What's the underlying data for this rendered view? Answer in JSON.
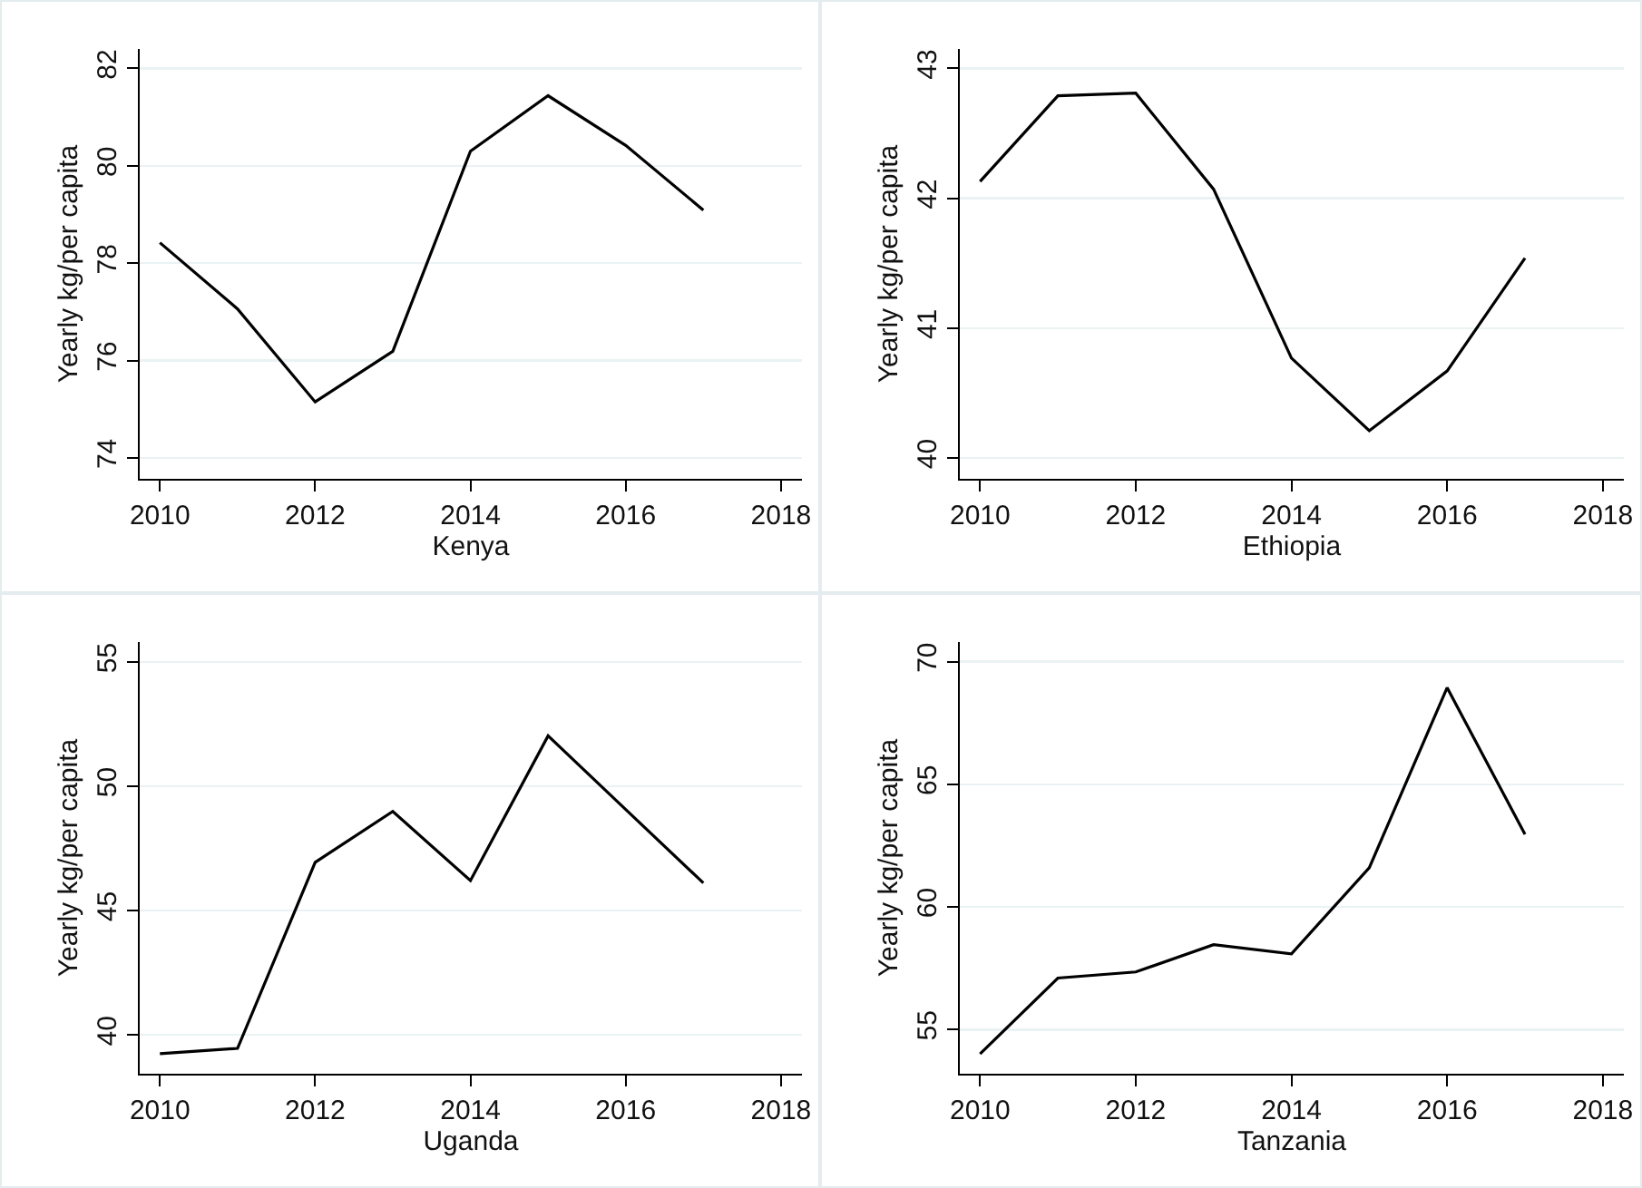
{
  "chart_data": [
    {
      "type": "line",
      "xlabel": "Kenya",
      "ylabel": "Yearly kg/per capita",
      "x": [
        2010,
        2011,
        2012,
        2013,
        2014,
        2015,
        2016,
        2017
      ],
      "series": [
        {
          "color": "#000000",
          "values": [
            78.42,
            77.06,
            75.15,
            76.19,
            80.3,
            81.44,
            80.42,
            79.09
          ]
        }
      ],
      "xlim": [
        2009.74,
        2018.27
      ],
      "ylim": [
        73.57,
        82.4
      ],
      "xticks": [
        2010,
        2012,
        2014,
        2016,
        2018
      ],
      "yticks": [
        74,
        76,
        78,
        80,
        82
      ],
      "grid": "y",
      "legend": false
    },
    {
      "type": "line",
      "xlabel": "Ethiopia",
      "ylabel": "Yearly kg/per capita",
      "x": [
        2010,
        2011,
        2012,
        2013,
        2014,
        2015,
        2016,
        2017
      ],
      "series": [
        {
          "color": "#000000",
          "values": [
            42.13,
            42.79,
            42.81,
            42.07,
            40.77,
            40.21,
            40.67,
            41.54
          ]
        }
      ],
      "xlim": [
        2009.74,
        2018.27
      ],
      "ylim": [
        39.84,
        43.15
      ],
      "xticks": [
        2010,
        2012,
        2014,
        2016,
        2018
      ],
      "yticks": [
        40,
        41,
        42,
        43
      ],
      "grid": "y",
      "legend": false
    },
    {
      "type": "line",
      "xlabel": "Uganda",
      "ylabel": "Yearly kg/per capita",
      "x": [
        2010,
        2011,
        2012,
        2013,
        2014,
        2015,
        2016,
        2017
      ],
      "series": [
        {
          "color": "#000000",
          "values": [
            39.25,
            39.46,
            46.94,
            48.99,
            46.21,
            52.03,
            49.07,
            46.11
          ]
        }
      ],
      "xlim": [
        2009.74,
        2018.27
      ],
      "ylim": [
        38.44,
        55.8
      ],
      "xticks": [
        2010,
        2012,
        2014,
        2016,
        2018
      ],
      "yticks": [
        40,
        45,
        50,
        55
      ],
      "grid": "y",
      "legend": false
    },
    {
      "type": "line",
      "xlabel": "Tanzania",
      "ylabel": "Yearly kg/per capita",
      "x": [
        2010,
        2011,
        2012,
        2013,
        2014,
        2015,
        2016,
        2017
      ],
      "series": [
        {
          "color": "#000000",
          "values": [
            54.01,
            57.1,
            57.35,
            58.46,
            58.09,
            61.6,
            68.94,
            62.96
          ]
        }
      ],
      "xlim": [
        2009.74,
        2018.27
      ],
      "ylim": [
        53.2,
        70.8
      ],
      "xticks": [
        2010,
        2012,
        2014,
        2016,
        2018
      ],
      "yticks": [
        55,
        60,
        65,
        70
      ],
      "grid": "y",
      "legend": false
    }
  ]
}
